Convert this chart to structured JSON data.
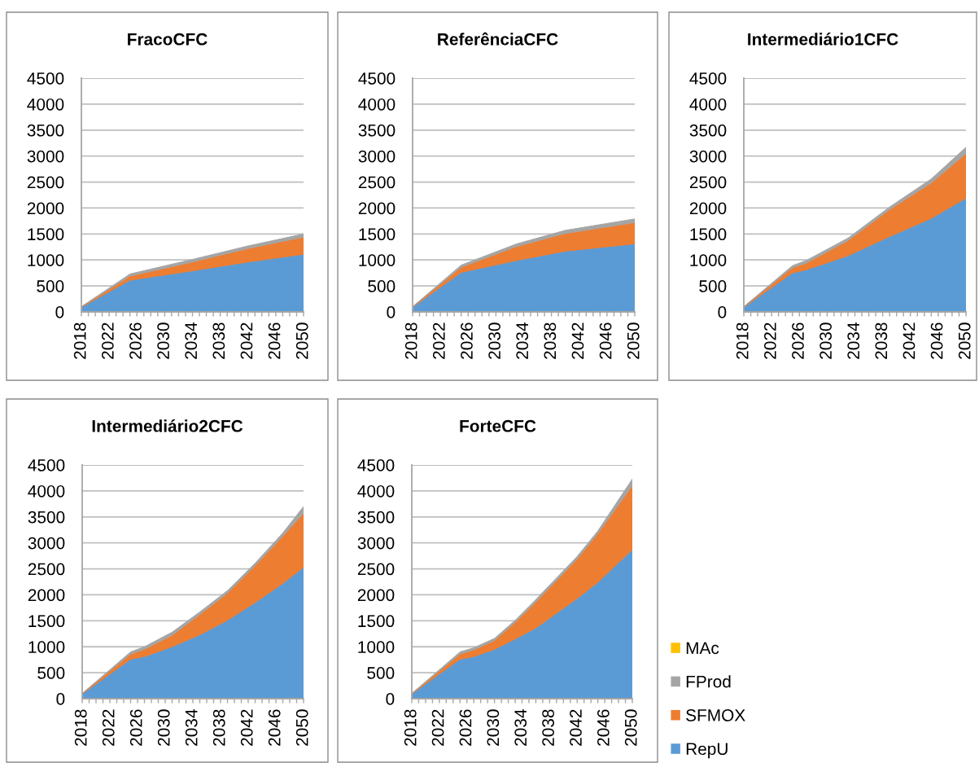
{
  "chart_data": [
    {
      "type": "area",
      "stacked": true,
      "title": "FracoCFC",
      "x": [
        2018,
        2025,
        2034,
        2042,
        2050
      ],
      "series": [
        {
          "color": "#5b9bd5",
          "values": [
            90,
            610,
            790,
            960,
            1110
          ]
        },
        {
          "color": "#ed7d31",
          "values": [
            10,
            80,
            170,
            260,
            330
          ]
        },
        {
          "color": "#a5a5a5",
          "values": [
            0,
            40,
            50,
            50,
            60
          ]
        }
      ],
      "xlim": [
        2018,
        2050
      ],
      "xticks": [
        2018,
        {
          "value": 2019,
          "label": null
        },
        {
          "value": 2020,
          "label": null
        },
        {
          "value": 2021,
          "label": null
        },
        2022,
        {
          "value": 2023,
          "label": null
        },
        {
          "value": 2024,
          "label": null
        },
        {
          "value": 2025,
          "label": null
        },
        2026,
        {
          "value": 2027,
          "label": null
        },
        {
          "value": 2028,
          "label": null
        },
        {
          "value": 2029,
          "label": null
        },
        2030,
        {
          "value": 2031,
          "label": null
        },
        {
          "value": 2032,
          "label": null
        },
        {
          "value": 2033,
          "label": null
        },
        2034,
        {
          "value": 2035,
          "label": null
        },
        {
          "value": 2036,
          "label": null
        },
        {
          "value": 2037,
          "label": null
        },
        2038,
        {
          "value": 2039,
          "label": null
        },
        {
          "value": 2040,
          "label": null
        },
        {
          "value": 2041,
          "label": null
        },
        2042,
        {
          "value": 2043,
          "label": null
        },
        {
          "value": 2044,
          "label": null
        },
        {
          "value": 2045,
          "label": null
        },
        2046,
        {
          "value": 2047,
          "label": null
        },
        {
          "value": 2048,
          "label": null
        },
        {
          "value": 2049,
          "label": null
        },
        2050
      ],
      "ylim": [
        0,
        4500
      ],
      "yticks": [
        0,
        500,
        1000,
        1500,
        2000,
        2500,
        3000,
        3500,
        4000,
        4500
      ],
      "grid": "y"
    },
    {
      "type": "area",
      "stacked": true,
      "title": "ReferênciaCFC",
      "x": [
        2018,
        2025,
        2033,
        2040,
        2050
      ],
      "series": [
        {
          "color": "#5b9bd5",
          "values": [
            90,
            760,
            990,
            1170,
            1310
          ]
        },
        {
          "color": "#ed7d31",
          "values": [
            10,
            100,
            270,
            340,
            410
          ]
        },
        {
          "color": "#a5a5a5",
          "values": [
            0,
            40,
            50,
            60,
            70
          ]
        }
      ],
      "xlim": [
        2018,
        2050
      ],
      "xticks": [
        2018,
        {
          "value": 2019,
          "label": null
        },
        {
          "value": 2020,
          "label": null
        },
        {
          "value": 2021,
          "label": null
        },
        2022,
        {
          "value": 2023,
          "label": null
        },
        {
          "value": 2024,
          "label": null
        },
        {
          "value": 2025,
          "label": null
        },
        2026,
        {
          "value": 2027,
          "label": null
        },
        {
          "value": 2028,
          "label": null
        },
        {
          "value": 2029,
          "label": null
        },
        2030,
        {
          "value": 2031,
          "label": null
        },
        {
          "value": 2032,
          "label": null
        },
        {
          "value": 2033,
          "label": null
        },
        2034,
        {
          "value": 2035,
          "label": null
        },
        {
          "value": 2036,
          "label": null
        },
        {
          "value": 2037,
          "label": null
        },
        2038,
        {
          "value": 2039,
          "label": null
        },
        {
          "value": 2040,
          "label": null
        },
        {
          "value": 2041,
          "label": null
        },
        2042,
        {
          "value": 2043,
          "label": null
        },
        {
          "value": 2044,
          "label": null
        },
        {
          "value": 2045,
          "label": null
        },
        2046,
        {
          "value": 2047,
          "label": null
        },
        {
          "value": 2048,
          "label": null
        },
        {
          "value": 2049,
          "label": null
        },
        2050
      ],
      "ylim": [
        0,
        4500
      ],
      "yticks": [
        0,
        500,
        1000,
        1500,
        2000,
        2500,
        3000,
        3500,
        4000,
        4500
      ],
      "grid": "y"
    },
    {
      "type": "area",
      "stacked": true,
      "title": "Intermediário1CFC",
      "x": [
        2018,
        2025,
        2027,
        2033,
        2039,
        2045,
        2050
      ],
      "series": [
        {
          "color": "#5b9bd5",
          "values": [
            90,
            750,
            810,
            1080,
            1450,
            1800,
            2190
          ]
        },
        {
          "color": "#ed7d31",
          "values": [
            10,
            100,
            130,
            290,
            520,
            680,
            860
          ]
        },
        {
          "color": "#a5a5a5",
          "values": [
            0,
            40,
            50,
            50,
            50,
            80,
            120
          ]
        }
      ],
      "xlim": [
        2018,
        2050
      ],
      "xticks": [
        2018,
        {
          "value": 2019,
          "label": null
        },
        {
          "value": 2020,
          "label": null
        },
        {
          "value": 2021,
          "label": null
        },
        2022,
        {
          "value": 2023,
          "label": null
        },
        {
          "value": 2024,
          "label": null
        },
        {
          "value": 2025,
          "label": null
        },
        2026,
        {
          "value": 2027,
          "label": null
        },
        {
          "value": 2028,
          "label": null
        },
        {
          "value": 2029,
          "label": null
        },
        2030,
        {
          "value": 2031,
          "label": null
        },
        {
          "value": 2032,
          "label": null
        },
        {
          "value": 2033,
          "label": null
        },
        2034,
        {
          "value": 2035,
          "label": null
        },
        {
          "value": 2036,
          "label": null
        },
        {
          "value": 2037,
          "label": null
        },
        2038,
        {
          "value": 2039,
          "label": null
        },
        {
          "value": 2040,
          "label": null
        },
        {
          "value": 2041,
          "label": null
        },
        2042,
        {
          "value": 2043,
          "label": null
        },
        {
          "value": 2044,
          "label": null
        },
        {
          "value": 2045,
          "label": null
        },
        2046,
        {
          "value": 2047,
          "label": null
        },
        {
          "value": 2048,
          "label": null
        },
        {
          "value": 2049,
          "label": null
        },
        2050
      ],
      "ylim": [
        0,
        4500
      ],
      "yticks": [
        0,
        500,
        1000,
        1500,
        2000,
        2500,
        3000,
        3500,
        4000,
        4500
      ],
      "grid": "y"
    },
    {
      "type": "area",
      "stacked": true,
      "title": "Intermediário2CFC",
      "x": [
        2018,
        2025,
        2027,
        2031,
        2035,
        2039,
        2043,
        2047,
        2050
      ],
      "series": [
        {
          "color": "#5b9bd5",
          "values": [
            90,
            760,
            810,
            1000,
            1230,
            1510,
            1850,
            2220,
            2530
          ]
        },
        {
          "color": "#ed7d31",
          "values": [
            10,
            100,
            140,
            220,
            390,
            520,
            710,
            910,
            1040
          ]
        },
        {
          "color": "#a5a5a5",
          "values": [
            0,
            40,
            50,
            60,
            50,
            50,
            50,
            60,
            130
          ]
        }
      ],
      "xlim": [
        2018,
        2050
      ],
      "xticks": [
        2018,
        {
          "value": 2019,
          "label": null
        },
        {
          "value": 2020,
          "label": null
        },
        {
          "value": 2021,
          "label": null
        },
        2022,
        {
          "value": 2023,
          "label": null
        },
        {
          "value": 2024,
          "label": null
        },
        {
          "value": 2025,
          "label": null
        },
        2026,
        {
          "value": 2027,
          "label": null
        },
        {
          "value": 2028,
          "label": null
        },
        {
          "value": 2029,
          "label": null
        },
        2030,
        {
          "value": 2031,
          "label": null
        },
        {
          "value": 2032,
          "label": null
        },
        {
          "value": 2033,
          "label": null
        },
        2034,
        {
          "value": 2035,
          "label": null
        },
        {
          "value": 2036,
          "label": null
        },
        {
          "value": 2037,
          "label": null
        },
        2038,
        {
          "value": 2039,
          "label": null
        },
        {
          "value": 2040,
          "label": null
        },
        {
          "value": 2041,
          "label": null
        },
        2042,
        {
          "value": 2043,
          "label": null
        },
        {
          "value": 2044,
          "label": null
        },
        {
          "value": 2045,
          "label": null
        },
        2046,
        {
          "value": 2047,
          "label": null
        },
        {
          "value": 2048,
          "label": null
        },
        {
          "value": 2049,
          "label": null
        },
        2050
      ],
      "ylim": [
        0,
        4500
      ],
      "yticks": [
        0,
        500,
        1000,
        1500,
        2000,
        2500,
        3000,
        3500,
        4000,
        4500
      ],
      "grid": "y"
    },
    {
      "type": "area",
      "stacked": true,
      "title": "ForteCFC",
      "x": [
        2018,
        2025,
        2027,
        2030,
        2033,
        2036,
        2042,
        2045,
        2050
      ],
      "series": [
        {
          "name": "RepU",
          "color": "#5b9bd5",
          "values": [
            90,
            760,
            810,
            950,
            1150,
            1360,
            1930,
            2240,
            2870
          ]
        },
        {
          "name": "SFMOX",
          "color": "#ed7d31",
          "values": [
            10,
            100,
            130,
            170,
            320,
            500,
            760,
            940,
            1230
          ]
        },
        {
          "name": "FProd",
          "color": "#a5a5a5",
          "values": [
            0,
            40,
            40,
            40,
            40,
            50,
            50,
            50,
            130
          ]
        },
        {
          "name": "MAc",
          "color": "#ffc000",
          "values": [
            null,
            null,
            null,
            null,
            null,
            null,
            null,
            null,
            null
          ]
        }
      ],
      "xlim": [
        2018,
        2050
      ],
      "xticks": [
        2018,
        {
          "value": 2019,
          "label": null
        },
        {
          "value": 2020,
          "label": null
        },
        {
          "value": 2021,
          "label": null
        },
        2022,
        {
          "value": 2023,
          "label": null
        },
        {
          "value": 2024,
          "label": null
        },
        {
          "value": 2025,
          "label": null
        },
        2026,
        {
          "value": 2027,
          "label": null
        },
        {
          "value": 2028,
          "label": null
        },
        {
          "value": 2029,
          "label": null
        },
        2030,
        {
          "value": 2031,
          "label": null
        },
        {
          "value": 2032,
          "label": null
        },
        {
          "value": 2033,
          "label": null
        },
        2034,
        {
          "value": 2035,
          "label": null
        },
        {
          "value": 2036,
          "label": null
        },
        {
          "value": 2037,
          "label": null
        },
        2038,
        {
          "value": 2039,
          "label": null
        },
        {
          "value": 2040,
          "label": null
        },
        {
          "value": 2041,
          "label": null
        },
        2042,
        {
          "value": 2043,
          "label": null
        },
        {
          "value": 2044,
          "label": null
        },
        {
          "value": 2045,
          "label": null
        },
        2046,
        {
          "value": 2047,
          "label": null
        },
        {
          "value": 2048,
          "label": null
        },
        {
          "value": 2049,
          "label": null
        },
        2050
      ],
      "ylim": [
        0,
        4500
      ],
      "yticks": [
        0,
        500,
        1000,
        1500,
        2000,
        2500,
        3000,
        3500,
        4000,
        4500
      ],
      "grid": "y",
      "legend": "bottom right"
    }
  ]
}
